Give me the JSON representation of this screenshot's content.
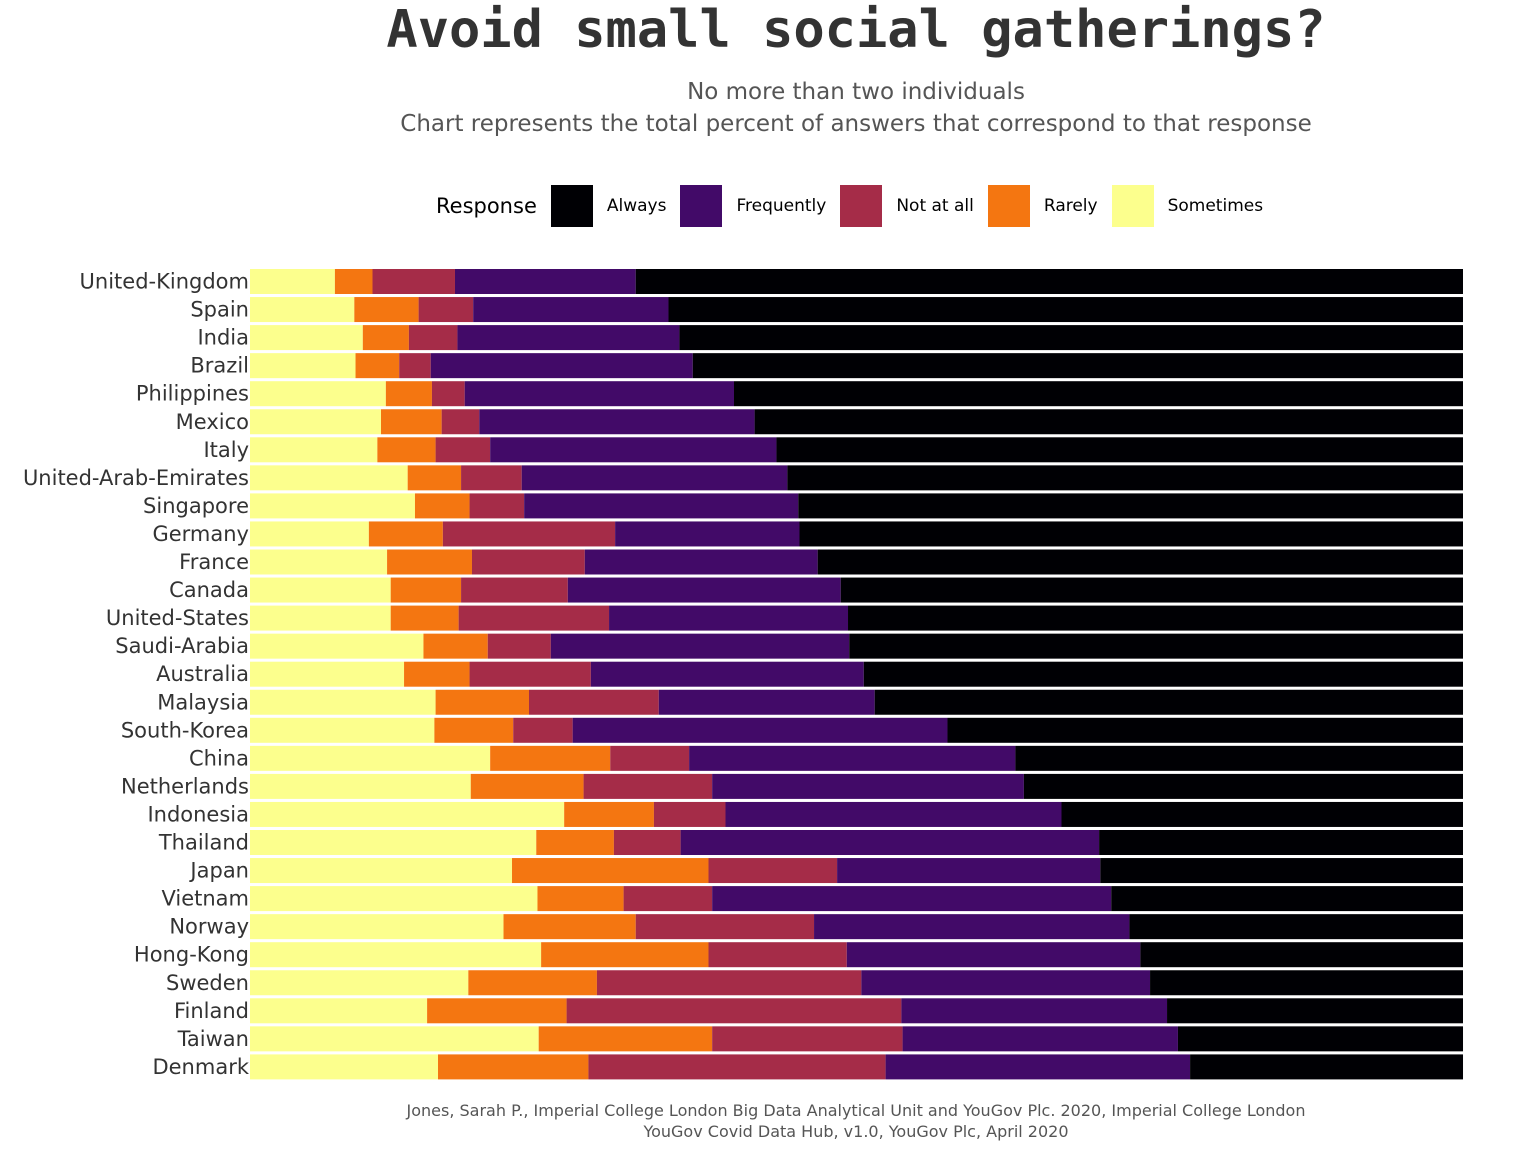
{
  "chart_data": {
    "type": "bar",
    "orientation": "horizontal",
    "stacked": true,
    "normalized": true,
    "title": "Avoid small social gatherings?",
    "subtitle": [
      "No more than two individuals",
      "Chart represents the total percent of answers that correspond to that response"
    ],
    "legend_title": "Response",
    "legend_position": "top",
    "grid": false,
    "xlim": [
      0,
      1
    ],
    "caption": [
      "Jones, Sarah P., Imperial College London Big Data Analytical Unit and YouGov Plc. 2020, Imperial College London",
      "YouGov Covid Data Hub, v1.0, YouGov Plc, April 2020"
    ],
    "legend": [
      {
        "name": "Always",
        "color": "#000004"
      },
      {
        "name": "Frequently",
        "color": "#420a68"
      },
      {
        "name": "Not at all",
        "color": "#a52c48"
      },
      {
        "name": "Rarely",
        "color": "#f47611"
      },
      {
        "name": "Sometimes",
        "color": "#fcff8d"
      }
    ],
    "stack_order": [
      "Sometimes",
      "Rarely",
      "Not at all",
      "Frequently",
      "Always"
    ],
    "categories": [
      "United-Kingdom",
      "Spain",
      "India",
      "Brazil",
      "Philippines",
      "Mexico",
      "Italy",
      "United-Arab-Emirates",
      "Singapore",
      "Germany",
      "France",
      "Canada",
      "United-States",
      "Saudi-Arabia",
      "Australia",
      "Malaysia",
      "South-Korea",
      "China",
      "Netherlands",
      "Indonesia",
      "Thailand",
      "Japan",
      "Vietnam",
      "Norway",
      "Hong-Kong",
      "Sweden",
      "Finland",
      "Taiwan",
      "Denmark"
    ],
    "series": [
      {
        "name": "Sometimes",
        "values": [
          0.07,
          0.086,
          0.093,
          0.087,
          0.112,
          0.108,
          0.105,
          0.13,
          0.136,
          0.098,
          0.113,
          0.116,
          0.116,
          0.143,
          0.127,
          0.153,
          0.152,
          0.198,
          0.182,
          0.259,
          0.236,
          0.216,
          0.237,
          0.209,
          0.24,
          0.18,
          0.146,
          0.238,
          0.155
        ]
      },
      {
        "name": "Rarely",
        "values": [
          0.031,
          0.053,
          0.038,
          0.036,
          0.038,
          0.05,
          0.048,
          0.044,
          0.045,
          0.061,
          0.07,
          0.058,
          0.056,
          0.053,
          0.054,
          0.077,
          0.065,
          0.099,
          0.093,
          0.074,
          0.064,
          0.162,
          0.071,
          0.109,
          0.138,
          0.106,
          0.115,
          0.143,
          0.124
        ]
      },
      {
        "name": "Not at all",
        "values": [
          0.068,
          0.045,
          0.04,
          0.026,
          0.027,
          0.031,
          0.045,
          0.05,
          0.045,
          0.142,
          0.093,
          0.088,
          0.124,
          0.052,
          0.1,
          0.107,
          0.049,
          0.065,
          0.106,
          0.059,
          0.055,
          0.106,
          0.073,
          0.147,
          0.114,
          0.218,
          0.276,
          0.157,
          0.245
        ]
      },
      {
        "name": "Frequently",
        "values": [
          0.149,
          0.161,
          0.183,
          0.216,
          0.222,
          0.227,
          0.236,
          0.219,
          0.226,
          0.152,
          0.192,
          0.225,
          0.197,
          0.246,
          0.225,
          0.178,
          0.309,
          0.269,
          0.257,
          0.277,
          0.345,
          0.217,
          0.329,
          0.26,
          0.242,
          0.238,
          0.219,
          0.227,
          0.251
        ]
      },
      {
        "name": "Always",
        "values": [
          0.682,
          0.655,
          0.646,
          0.635,
          0.601,
          0.584,
          0.566,
          0.557,
          0.548,
          0.547,
          0.532,
          0.513,
          0.507,
          0.506,
          0.494,
          0.485,
          0.425,
          0.369,
          0.362,
          0.331,
          0.3,
          0.299,
          0.29,
          0.275,
          0.266,
          0.258,
          0.244,
          0.235,
          0.225
        ]
      }
    ]
  }
}
